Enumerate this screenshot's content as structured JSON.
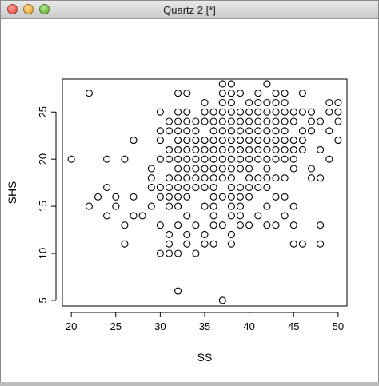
{
  "window": {
    "title": "Quartz 2 [*]"
  },
  "chart_data": {
    "type": "scatter",
    "title": "",
    "xlabel": "SS",
    "ylabel": "SHS",
    "xlim": [
      19,
      51
    ],
    "ylim": [
      4.4,
      28.5
    ],
    "xticks": [
      20,
      25,
      30,
      35,
      40,
      45,
      50
    ],
    "yticks": [
      5,
      10,
      15,
      20,
      25
    ],
    "grid": false,
    "marker": "open-circle",
    "x": [
      20,
      22,
      22,
      23,
      24,
      24,
      24,
      25,
      25,
      26,
      26,
      26,
      27,
      27,
      27,
      28,
      29,
      29,
      29,
      29,
      30,
      30,
      30,
      30,
      30,
      30,
      30,
      30,
      31,
      31,
      31,
      31,
      31,
      31,
      31,
      31,
      31,
      31,
      31,
      32,
      32,
      32,
      32,
      32,
      32,
      32,
      32,
      32,
      32,
      32,
      32,
      32,
      32,
      32,
      33,
      33,
      33,
      33,
      33,
      33,
      33,
      33,
      33,
      33,
      33,
      33,
      33,
      33,
      34,
      34,
      34,
      34,
      34,
      34,
      34,
      34,
      34,
      34,
      35,
      35,
      35,
      35,
      35,
      35,
      35,
      35,
      35,
      35,
      35,
      35,
      36,
      36,
      36,
      36,
      36,
      36,
      36,
      36,
      36,
      36,
      36,
      36,
      36,
      36,
      37,
      37,
      37,
      37,
      37,
      37,
      37,
      37,
      37,
      37,
      37,
      37,
      37,
      37,
      38,
      38,
      38,
      38,
      38,
      38,
      38,
      38,
      38,
      38,
      38,
      38,
      38,
      38,
      38,
      38,
      38,
      39,
      39,
      39,
      39,
      39,
      39,
      39,
      39,
      39,
      39,
      39,
      39,
      39,
      40,
      40,
      40,
      40,
      40,
      40,
      40,
      40,
      40,
      40,
      40,
      40,
      41,
      41,
      41,
      41,
      41,
      41,
      41,
      41,
      41,
      41,
      41,
      42,
      42,
      42,
      42,
      42,
      42,
      42,
      42,
      42,
      42,
      42,
      42,
      42,
      43,
      43,
      43,
      43,
      43,
      43,
      43,
      43,
      43,
      43,
      43,
      44,
      44,
      44,
      44,
      44,
      44,
      44,
      44,
      44,
      44,
      44,
      45,
      45,
      45,
      45,
      45,
      45,
      45,
      45,
      45,
      46,
      46,
      46,
      46,
      46,
      46,
      47,
      47,
      47,
      47,
      47,
      48,
      48,
      48,
      48,
      48,
      49,
      49,
      49,
      49,
      50,
      50,
      50,
      50
    ],
    "y": [
      20,
      27,
      15,
      16,
      14,
      17,
      20,
      16,
      15,
      13,
      11,
      20,
      22,
      16,
      14,
      14,
      19,
      18,
      17,
      15,
      25,
      23,
      22,
      20,
      17,
      16,
      13,
      10,
      24,
      23,
      21,
      20,
      18,
      17,
      16,
      15,
      12,
      11,
      10,
      27,
      25,
      24,
      23,
      22,
      21,
      20,
      19,
      18,
      17,
      16,
      15,
      13,
      10,
      6,
      27,
      25,
      24,
      23,
      22,
      21,
      20,
      19,
      18,
      17,
      16,
      14,
      12,
      11,
      24,
      23,
      22,
      21,
      20,
      19,
      18,
      17,
      13,
      10,
      26,
      25,
      24,
      22,
      21,
      20,
      19,
      18,
      17,
      15,
      12,
      11,
      25,
      24,
      23,
      22,
      21,
      20,
      19,
      18,
      17,
      16,
      15,
      14,
      13,
      11,
      28,
      27,
      26,
      25,
      24,
      23,
      22,
      21,
      20,
      19,
      18,
      16,
      13,
      5,
      28,
      27,
      26,
      25,
      24,
      23,
      22,
      21,
      20,
      19,
      18,
      17,
      16,
      15,
      14,
      12,
      11,
      27,
      25,
      24,
      23,
      22,
      21,
      20,
      19,
      17,
      16,
      15,
      14,
      13,
      26,
      25,
      24,
      23,
      22,
      21,
      20,
      19,
      18,
      17,
      16,
      13,
      27,
      26,
      25,
      24,
      23,
      22,
      21,
      20,
      18,
      17,
      14,
      28,
      26,
      25,
      24,
      23,
      22,
      21,
      20,
      19,
      18,
      17,
      15,
      13,
      27,
      26,
      25,
      24,
      23,
      22,
      21,
      20,
      18,
      16,
      13,
      27,
      26,
      25,
      24,
      23,
      22,
      21,
      20,
      18,
      16,
      14,
      25,
      24,
      22,
      21,
      20,
      19,
      15,
      13,
      11,
      27,
      25,
      23,
      22,
      21,
      11,
      25,
      24,
      23,
      19,
      18,
      24,
      21,
      18,
      13,
      11,
      26,
      25,
      23,
      20,
      26,
      25,
      24,
      22
    ]
  }
}
